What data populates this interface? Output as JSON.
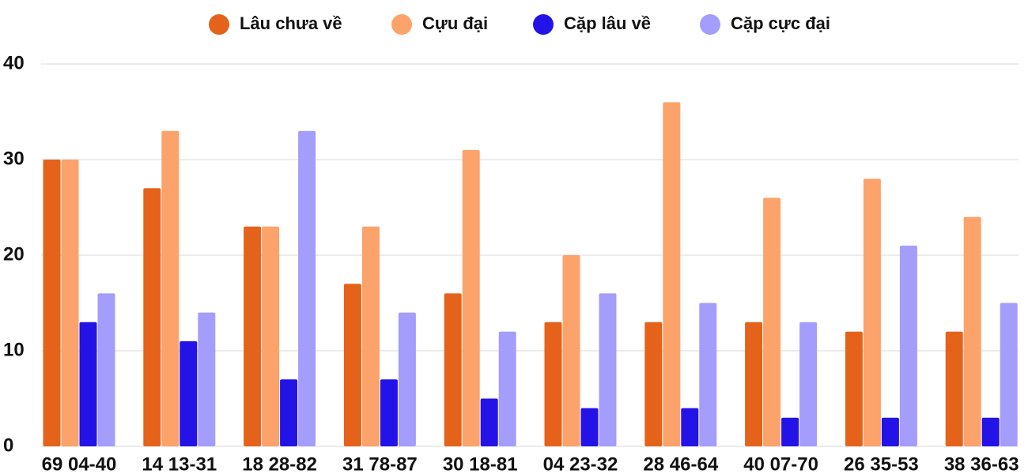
{
  "chart_data": {
    "type": "bar",
    "categories": [
      "69 04-40",
      "14 13-31",
      "18 28-82",
      "31 78-87",
      "30 18-81",
      "04 23-32",
      "28 46-64",
      "40 07-70",
      "26 35-53",
      "38 36-63"
    ],
    "series": [
      {
        "name": "Lâu chưa về",
        "color": "#e5621a",
        "values": [
          30,
          27,
          23,
          17,
          16,
          13,
          13,
          13,
          12,
          12
        ]
      },
      {
        "name": "Cựu đại",
        "color": "#fba36a",
        "values": [
          30,
          33,
          23,
          23,
          31,
          20,
          36,
          26,
          28,
          24
        ]
      },
      {
        "name": "Cặp lâu về",
        "color": "#2413e6",
        "values": [
          13,
          11,
          7,
          7,
          5,
          4,
          4,
          3,
          3,
          3
        ]
      },
      {
        "name": "Cặp cực đại",
        "color": "#a49dfb",
        "values": [
          16,
          14,
          33,
          14,
          12,
          16,
          15,
          13,
          21,
          15
        ]
      }
    ],
    "ylim": [
      0,
      40
    ],
    "yticks": [
      0,
      10,
      20,
      30,
      40
    ],
    "grid": true,
    "legend": "top"
  }
}
